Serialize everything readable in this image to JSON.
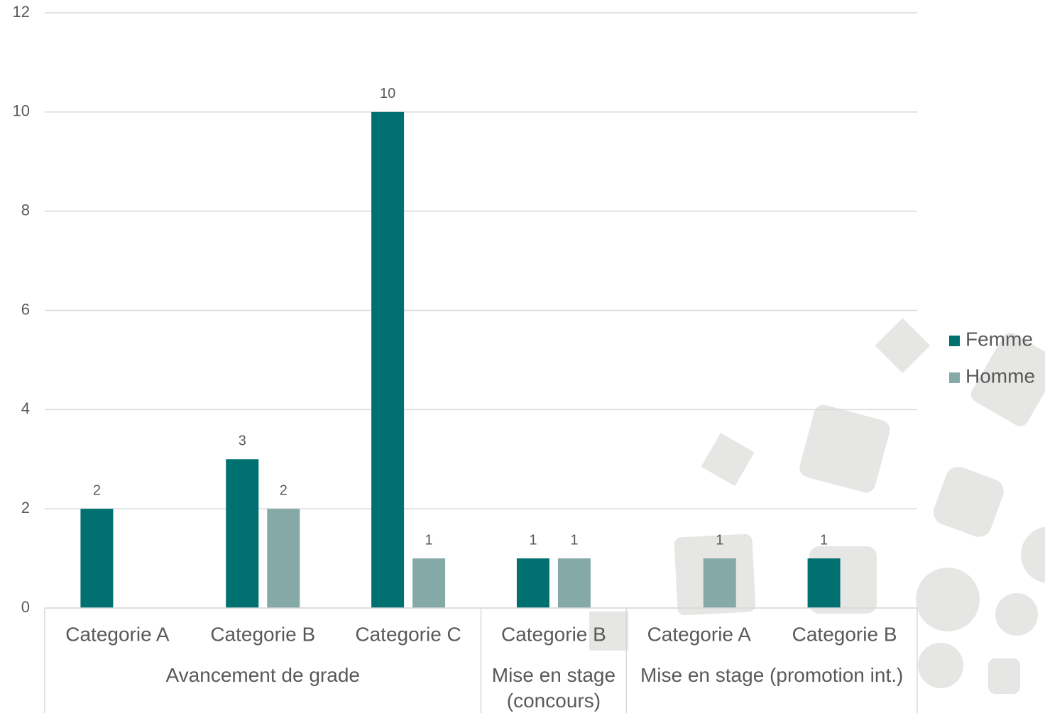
{
  "chart_data": {
    "type": "bar",
    "groups": [
      {
        "label": "Avancement de grade",
        "categories": [
          "Categorie A",
          "Categorie B",
          "Categorie C"
        ]
      },
      {
        "label": "Mise en stage (concours)",
        "categories": [
          "Categorie B"
        ]
      },
      {
        "label": "Mise en stage (promotion int.)",
        "categories": [
          "Categorie A",
          "Categorie B"
        ]
      }
    ],
    "series": [
      {
        "name": "Femme",
        "color": "#007070",
        "values": [
          2,
          3,
          10,
          1,
          null,
          1
        ]
      },
      {
        "name": "Homme",
        "color": "#84a9a7",
        "values": [
          null,
          2,
          1,
          1,
          1,
          null
        ]
      }
    ],
    "ylim": [
      0,
      12
    ],
    "yticks": [
      0,
      2,
      4,
      6,
      8,
      10,
      12
    ],
    "grid": true,
    "legend": "right"
  }
}
